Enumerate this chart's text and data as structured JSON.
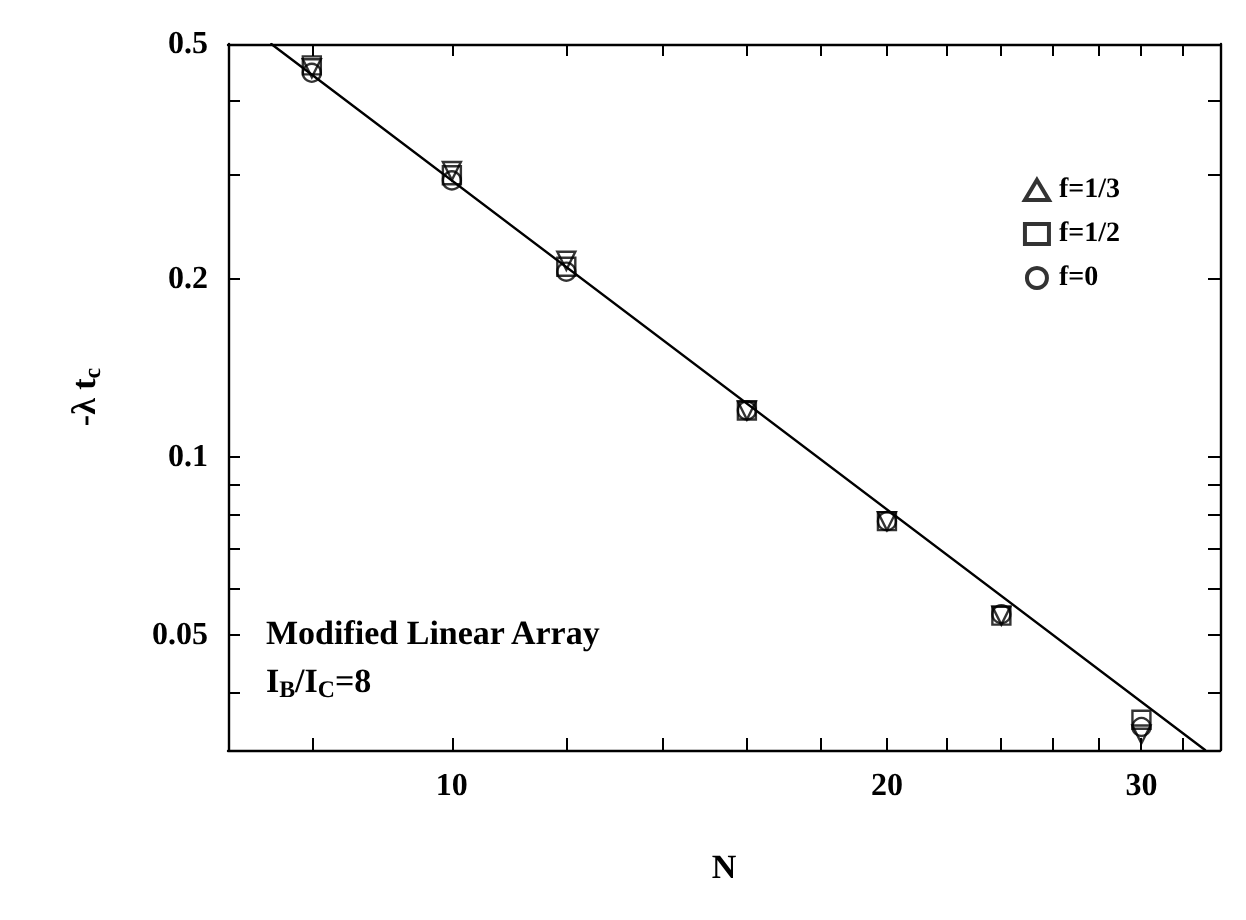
{
  "chart_data": {
    "type": "scatter",
    "xlabel": "N",
    "ylabel": "-λ t$_{c}$",
    "annotations": [
      "Modified Linear Array",
      "I$_{B}$/I$_{C}$=8"
    ],
    "log": "xy",
    "xlim": [
      7,
      34
    ],
    "ylim": [
      0.032,
      0.5
    ],
    "xticks": [
      {
        "value": 8,
        "label": null
      },
      10,
      {
        "value": 12,
        "label": null
      },
      {
        "value": 14,
        "label": null
      },
      {
        "value": 16,
        "label": null
      },
      {
        "value": 18,
        "label": null
      },
      20,
      {
        "value": 22,
        "label": null
      },
      {
        "value": 24,
        "label": null
      },
      {
        "value": 26,
        "label": null
      },
      {
        "value": 28,
        "label": null
      },
      30,
      {
        "value": 32,
        "label": null
      }
    ],
    "yticks": [
      {
        "value": 0.04,
        "label": null
      },
      0.05,
      {
        "value": 0.06,
        "label": null
      },
      {
        "value": 0.07,
        "label": null
      },
      {
        "value": 0.08,
        "label": null
      },
      {
        "value": 0.09,
        "label": null
      },
      0.1,
      0.2,
      {
        "value": 0.3,
        "label": null
      },
      {
        "value": 0.4,
        "label": null
      },
      0.5
    ],
    "grid": false,
    "legend": "top right",
    "x": [
      8,
      10,
      12,
      16,
      20,
      24,
      30
    ],
    "series": [
      {
        "name": "f=1/3",
        "color": "#000000",
        "marker": "triangle",
        "values": [
          0.455,
          0.305,
          0.215,
          0.12,
          0.078,
          0.054,
          0.034
        ]
      },
      {
        "name": "f=1/2",
        "color": "#000000",
        "marker": "square",
        "values": [
          0.46,
          0.3,
          0.21,
          0.12,
          0.078,
          0.054,
          0.036
        ]
      },
      {
        "name": "f=0",
        "color": "#000000",
        "marker": "circle",
        "values": [
          0.447,
          0.294,
          0.206,
          0.12,
          0.078,
          0.0543,
          0.035
        ]
      },
      {
        "type": "line",
        "color": "#000000",
        "marker": "none",
        "line_style": "solid",
        "x": [
          7.5,
          33.2
        ],
        "values": [
          0.5,
          0.032
        ]
      }
    ]
  }
}
